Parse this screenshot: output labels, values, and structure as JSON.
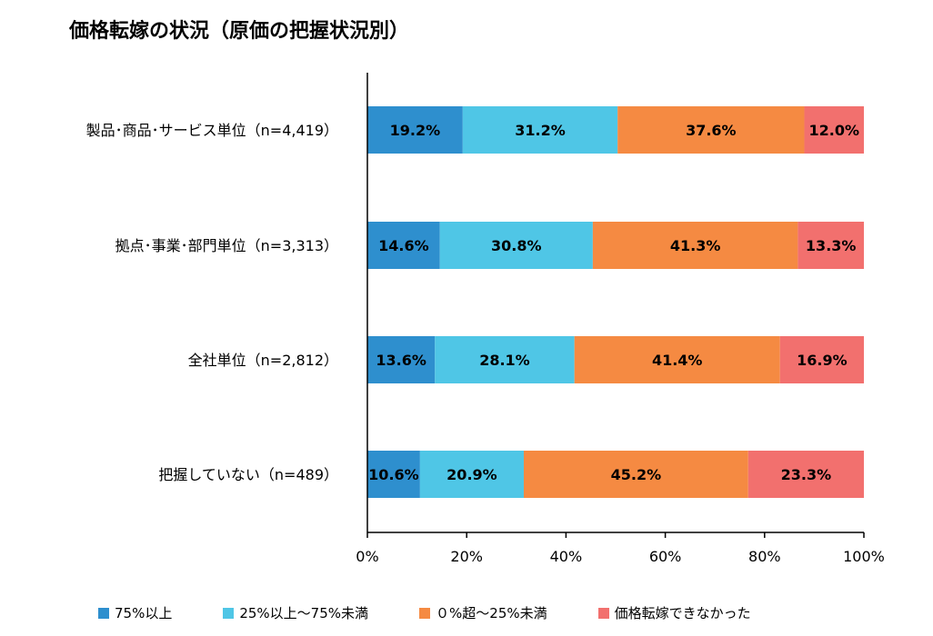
{
  "chart_data": {
    "type": "bar",
    "orientation": "horizontal",
    "stacked": true,
    "title": "価格転嫁の状況（原価の把握状況別）",
    "categories": [
      "製品･商品･サービス単位（n=4,419）",
      "拠点･事業･部門単位（n=3,313）",
      "全社単位（n=2,812）",
      "把握していない（n=489）"
    ],
    "series": [
      {
        "name": "75%以上",
        "color": "#2e8fce",
        "values": [
          19.2,
          14.6,
          13.6,
          10.6
        ],
        "labels": [
          "19.2%",
          "14.6%",
          "13.6%",
          "10.6%"
        ]
      },
      {
        "name": "25%以上～75%未満",
        "color": "#4fc6e6",
        "values": [
          31.2,
          30.8,
          28.1,
          20.9
        ],
        "labels": [
          "31.2%",
          "30.8%",
          "28.1%",
          "20.9%"
        ]
      },
      {
        "name": "０%超～25%未満",
        "color": "#f58a42",
        "values": [
          37.6,
          41.3,
          41.4,
          45.2
        ],
        "labels": [
          "37.6%",
          "41.3%",
          "41.4%",
          "45.2%"
        ]
      },
      {
        "name": "価格転嫁できなかった",
        "color": "#f2706e",
        "values": [
          12.0,
          13.3,
          16.9,
          23.3
        ],
        "labels": [
          "12.0%",
          "13.3%",
          "16.9%",
          "23.3%"
        ]
      }
    ],
    "xlim": [
      0,
      100
    ],
    "xticks": [
      0,
      20,
      40,
      60,
      80,
      100
    ],
    "xtick_labels": [
      "0%",
      "20%",
      "40%",
      "60%",
      "80%",
      "100%"
    ],
    "grid": false,
    "legend_position": "bottom"
  }
}
